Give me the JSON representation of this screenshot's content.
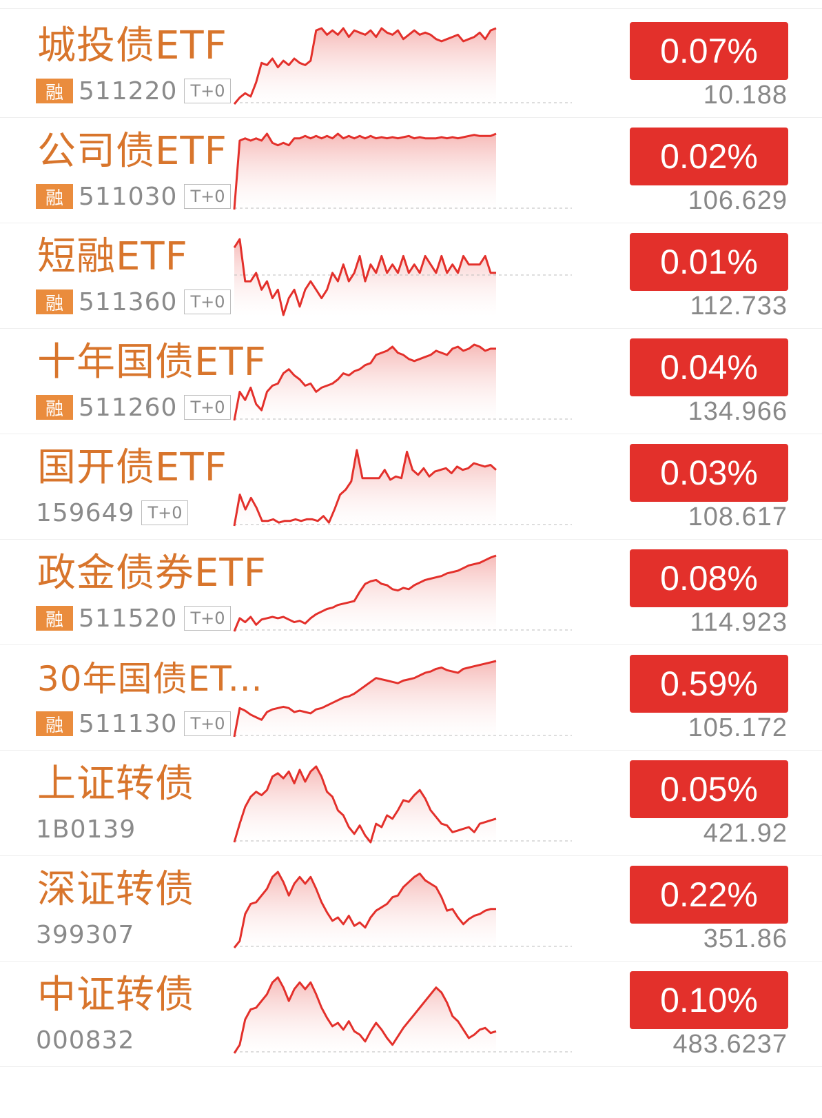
{
  "rows": [
    {
      "name": "城投债ETF",
      "rong": "融",
      "code": "511220",
      "t0": "T+0",
      "change": "0.07%",
      "price": "10.188",
      "spark": [
        2,
        8,
        12,
        9,
        22,
        40,
        38,
        44,
        36,
        42,
        38,
        44,
        40,
        38,
        42,
        70,
        72,
        66,
        70,
        66,
        72,
        64,
        70,
        68,
        66,
        70,
        64,
        72,
        68,
        66,
        70,
        62,
        66,
        70,
        66,
        68,
        66,
        62,
        60,
        62,
        64,
        66,
        60,
        62,
        64,
        68,
        62,
        70,
        72
      ]
    },
    {
      "name": "公司债ETF",
      "rong": "融",
      "code": "511030",
      "t0": "T+0",
      "change": "0.02%",
      "price": "106.629",
      "spark": [
        0,
        60,
        62,
        60,
        62,
        60,
        66,
        58,
        56,
        58,
        56,
        62,
        62,
        64,
        62,
        64,
        62,
        64,
        62,
        66,
        62,
        64,
        62,
        64,
        62,
        64,
        62,
        63,
        62,
        63,
        62,
        63,
        64,
        62,
        63,
        62,
        62,
        62,
        63,
        62,
        63,
        62,
        63,
        64,
        65,
        64,
        64,
        64,
        66
      ]
    },
    {
      "name": "短融ETF",
      "rong": "融",
      "code": "511360",
      "t0": "T+0",
      "change": "0.01%",
      "price": "112.733",
      "spark": [
        68,
        70,
        60,
        60,
        62,
        58,
        60,
        56,
        58,
        52,
        56,
        58,
        54,
        58,
        60,
        58,
        56,
        58,
        62,
        60,
        64,
        60,
        62,
        66,
        60,
        64,
        62,
        66,
        62,
        64,
        62,
        66,
        62,
        64,
        62,
        66,
        64,
        62,
        66,
        62,
        64,
        62,
        66,
        64,
        64,
        64,
        66,
        62,
        62
      ]
    },
    {
      "name": "十年国债ETF",
      "rong": "融",
      "code": "511260",
      "t0": "T+0",
      "change": "0.04%",
      "price": "134.966",
      "spark": [
        2,
        30,
        22,
        34,
        18,
        12,
        30,
        36,
        38,
        48,
        52,
        46,
        42,
        36,
        38,
        30,
        34,
        36,
        38,
        42,
        48,
        46,
        50,
        52,
        56,
        58,
        66,
        68,
        70,
        74,
        68,
        66,
        62,
        60,
        62,
        64,
        66,
        70,
        68,
        66,
        72,
        74,
        70,
        72,
        76,
        74,
        70,
        72,
        72
      ]
    },
    {
      "name": "国开债ETF",
      "rong": "",
      "code": "159649",
      "t0": "T+0",
      "change": "0.03%",
      "price": "108.617",
      "spark": [
        2,
        40,
        22,
        36,
        24,
        8,
        8,
        10,
        6,
        8,
        8,
        10,
        8,
        10,
        10,
        8,
        14,
        6,
        22,
        40,
        46,
        56,
        94,
        60,
        60,
        60,
        60,
        70,
        58,
        62,
        60,
        92,
        70,
        64,
        72,
        62,
        68,
        70,
        72,
        66,
        74,
        70,
        72,
        78,
        76,
        74,
        76,
        70
      ]
    },
    {
      "name": "政金债券ETF",
      "rong": "融",
      "code": "511520",
      "t0": "T+0",
      "change": "0.08%",
      "price": "114.923",
      "spark": [
        0,
        20,
        14,
        22,
        10,
        18,
        20,
        22,
        20,
        22,
        18,
        14,
        16,
        12,
        20,
        26,
        30,
        34,
        36,
        40,
        42,
        44,
        46,
        60,
        72,
        76,
        78,
        72,
        70,
        64,
        62,
        66,
        64,
        70,
        74,
        78,
        80,
        82,
        84,
        88,
        90,
        92,
        96,
        100,
        102,
        104,
        108,
        112,
        115
      ]
    },
    {
      "name": "30年国债ET...",
      "rong": "融",
      "code": "511130",
      "t0": "T+0",
      "change": "0.59%",
      "price": "105.172",
      "spark": [
        0,
        44,
        40,
        34,
        30,
        26,
        38,
        42,
        44,
        46,
        44,
        38,
        40,
        38,
        36,
        42,
        44,
        48,
        52,
        56,
        60,
        62,
        66,
        72,
        78,
        84,
        90,
        88,
        86,
        84,
        82,
        86,
        88,
        90,
        94,
        98,
        100,
        104,
        106,
        102,
        100,
        98,
        104,
        106,
        108,
        110,
        112,
        114,
        116
      ]
    },
    {
      "name": "上证转债",
      "rong": "",
      "code": "1B0139",
      "t0": "",
      "change": "0.05%",
      "price": "421.92",
      "spark": [
        2,
        24,
        44,
        56,
        62,
        58,
        64,
        80,
        84,
        78,
        86,
        72,
        88,
        74,
        86,
        92,
        80,
        62,
        56,
        40,
        34,
        20,
        12,
        22,
        10,
        2,
        24,
        20,
        34,
        30,
        40,
        52,
        50,
        58,
        64,
        54,
        40,
        32,
        24,
        22,
        14,
        16,
        18,
        20,
        14,
        24,
        26,
        28,
        30
      ]
    },
    {
      "name": "深证转债",
      "rong": "",
      "code": "399307",
      "t0": "",
      "change": "0.22%",
      "price": "351.86",
      "spark": [
        2,
        10,
        42,
        54,
        56,
        64,
        72,
        86,
        92,
        80,
        64,
        78,
        86,
        78,
        86,
        72,
        56,
        44,
        34,
        38,
        30,
        40,
        28,
        32,
        26,
        38,
        46,
        50,
        54,
        62,
        64,
        74,
        80,
        86,
        90,
        82,
        78,
        74,
        62,
        46,
        48,
        38,
        30,
        36,
        40,
        42,
        46,
        48,
        48
      ]
    },
    {
      "name": "中证转债",
      "rong": "",
      "code": "000832",
      "t0": "",
      "change": "0.10%",
      "price": "483.6237",
      "spark": [
        2,
        12,
        42,
        54,
        56,
        64,
        72,
        86,
        92,
        80,
        64,
        78,
        86,
        78,
        86,
        72,
        56,
        44,
        34,
        38,
        30,
        40,
        28,
        24,
        16,
        28,
        38,
        30,
        20,
        12,
        22,
        32,
        40,
        48,
        56,
        64,
        72,
        80,
        74,
        62,
        46,
        40,
        30,
        20,
        24,
        30,
        32,
        26,
        28
      ]
    }
  ],
  "colors": {
    "accent_red": "#e3302b",
    "name_orange": "#d8752c",
    "rong_badge": "#ea8c3d",
    "muted_text": "#8a8a8a"
  }
}
